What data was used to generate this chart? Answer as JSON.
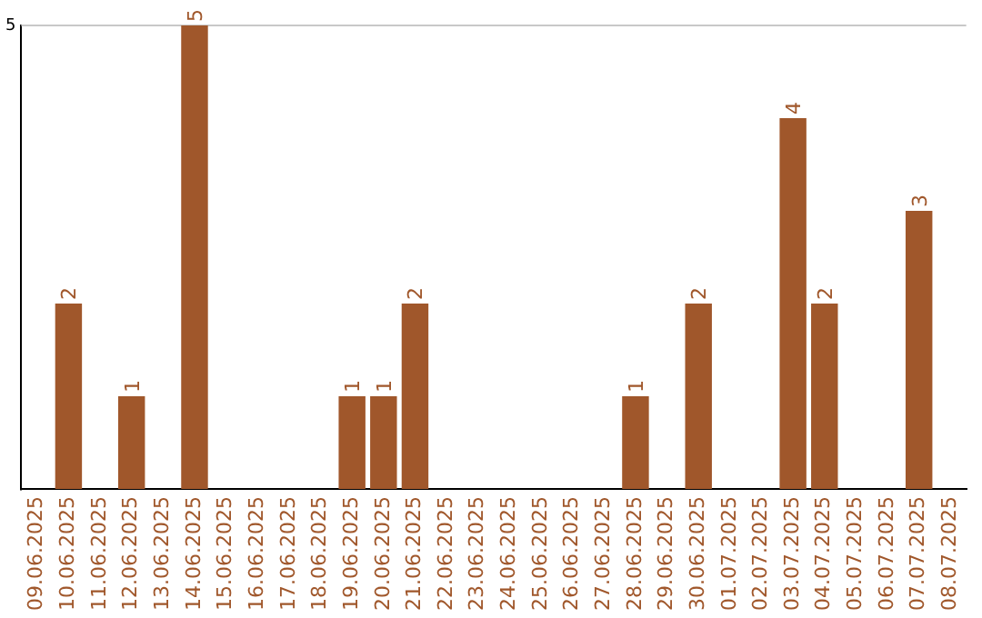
{
  "chart_data": {
    "type": "bar",
    "categories": [
      "09.06.2025",
      "10.06.2025",
      "11.06.2025",
      "12.06.2025",
      "13.06.2025",
      "14.06.2025",
      "15.06.2025",
      "16.06.2025",
      "17.06.2025",
      "18.06.2025",
      "19.06.2025",
      "20.06.2025",
      "21.06.2025",
      "22.06.2025",
      "23.06.2025",
      "24.06.2025",
      "25.06.2025",
      "26.06.2025",
      "27.06.2025",
      "28.06.2025",
      "29.06.2025",
      "30.06.2025",
      "01.07.2025",
      "02.07.2025",
      "03.07.2025",
      "04.07.2025",
      "05.07.2025",
      "06.07.2025",
      "07.07.2025",
      "08.07.2025"
    ],
    "values": [
      0,
      2,
      0,
      1,
      0,
      5,
      0,
      0,
      0,
      0,
      1,
      1,
      2,
      0,
      0,
      0,
      0,
      0,
      0,
      1,
      0,
      2,
      0,
      0,
      4,
      2,
      0,
      0,
      3,
      0
    ],
    "value_labels": [
      null,
      "2",
      null,
      "1",
      null,
      "5",
      null,
      null,
      null,
      null,
      "1",
      "1",
      "2",
      null,
      null,
      null,
      null,
      null,
      null,
      "1",
      null,
      "2",
      null,
      null,
      "4",
      "2",
      null,
      null,
      "3",
      null
    ],
    "color": "#a0572b",
    "ylim": [
      0,
      5
    ],
    "yticks": [
      5
    ],
    "ref_lines": [
      {
        "axis": "y",
        "value": 5,
        "color": "#c8c8c8"
      }
    ],
    "legend": false
  }
}
